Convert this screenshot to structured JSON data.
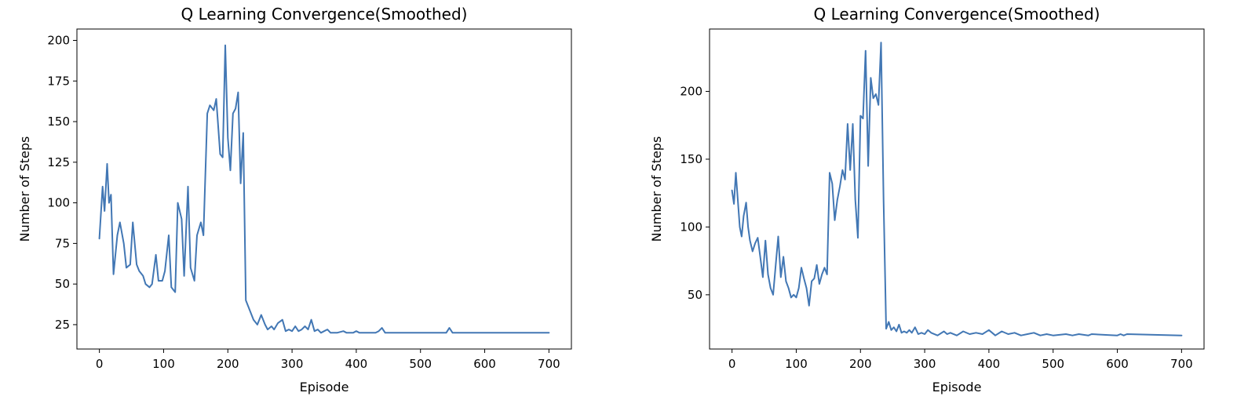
{
  "chart_data": [
    {
      "type": "line",
      "title": "Q Learning Convergence(Smoothed)",
      "xlabel": "Episode",
      "ylabel": "Number of Steps",
      "xlim": [
        -35,
        735
      ],
      "ylim": [
        10,
        207
      ],
      "xticks": [
        0,
        100,
        200,
        300,
        400,
        500,
        600,
        700
      ],
      "yticks": [
        25,
        50,
        75,
        100,
        125,
        150,
        175,
        200
      ],
      "grid": false,
      "legend": "none",
      "series": [
        {
          "color": "#4277b4",
          "x": [
            0,
            5,
            8,
            12,
            15,
            18,
            22,
            28,
            32,
            38,
            42,
            48,
            52,
            58,
            62,
            68,
            72,
            78,
            82,
            88,
            92,
            98,
            102,
            108,
            112,
            118,
            122,
            128,
            132,
            138,
            142,
            148,
            152,
            158,
            162,
            168,
            172,
            178,
            182,
            188,
            192,
            196,
            200,
            204,
            208,
            212,
            216,
            220,
            224,
            228,
            232,
            236,
            240,
            246,
            252,
            258,
            262,
            268,
            272,
            278,
            285,
            290,
            295,
            300,
            305,
            310,
            315,
            320,
            325,
            330,
            335,
            340,
            345,
            350,
            355,
            360,
            370,
            380,
            385,
            395,
            400,
            405,
            415,
            430,
            435,
            440,
            445,
            455,
            540,
            545,
            550,
            560,
            700
          ],
          "y": [
            78,
            110,
            95,
            124,
            100,
            105,
            56,
            80,
            88,
            75,
            60,
            62,
            88,
            62,
            58,
            55,
            50,
            48,
            50,
            68,
            52,
            52,
            58,
            80,
            48,
            45,
            100,
            90,
            55,
            110,
            60,
            52,
            80,
            88,
            80,
            155,
            160,
            157,
            164,
            130,
            128,
            197,
            140,
            120,
            155,
            158,
            168,
            112,
            143,
            40,
            36,
            32,
            28,
            25,
            31,
            25,
            22,
            24,
            22,
            26,
            28,
            21,
            22,
            21,
            24,
            21,
            22,
            24,
            22,
            28,
            21,
            22,
            20,
            21,
            22,
            20,
            20,
            21,
            20,
            20,
            21,
            20,
            20,
            20,
            21,
            23,
            20,
            20,
            20,
            23,
            20,
            20,
            20
          ]
        }
      ]
    },
    {
      "type": "line",
      "title": "Q Learning Convergence(Smoothed)",
      "xlabel": "Episode",
      "ylabel": "Number of Steps",
      "xlim": [
        -35,
        735
      ],
      "ylim": [
        10,
        246
      ],
      "xticks": [
        0,
        100,
        200,
        300,
        400,
        500,
        600,
        700
      ],
      "yticks": [
        50,
        100,
        150,
        200
      ],
      "grid": false,
      "legend": "none",
      "series": [
        {
          "color": "#4277b4",
          "x": [
            0,
            3,
            6,
            9,
            12,
            15,
            18,
            22,
            25,
            28,
            32,
            36,
            40,
            44,
            48,
            52,
            56,
            60,
            64,
            68,
            72,
            76,
            80,
            84,
            88,
            92,
            96,
            100,
            104,
            108,
            112,
            116,
            120,
            124,
            128,
            132,
            136,
            140,
            144,
            148,
            152,
            156,
            160,
            164,
            168,
            172,
            176,
            180,
            184,
            188,
            192,
            196,
            200,
            204,
            208,
            212,
            216,
            220,
            224,
            228,
            232,
            236,
            240,
            244,
            248,
            252,
            256,
            260,
            264,
            268,
            272,
            276,
            280,
            285,
            290,
            295,
            300,
            305,
            310,
            320,
            330,
            335,
            340,
            350,
            360,
            370,
            380,
            390,
            400,
            410,
            420,
            430,
            440,
            450,
            460,
            470,
            480,
            490,
            500,
            520,
            530,
            540,
            555,
            560,
            600,
            605,
            610,
            615,
            700
          ],
          "y": [
            127,
            117,
            140,
            120,
            100,
            93,
            108,
            118,
            100,
            90,
            82,
            88,
            92,
            78,
            63,
            90,
            65,
            55,
            50,
            72,
            93,
            63,
            78,
            60,
            55,
            48,
            50,
            48,
            55,
            70,
            62,
            55,
            42,
            60,
            62,
            72,
            58,
            65,
            70,
            65,
            140,
            132,
            105,
            120,
            130,
            142,
            135,
            176,
            142,
            176,
            120,
            92,
            182,
            180,
            230,
            145,
            210,
            195,
            198,
            190,
            236,
            120,
            25,
            30,
            24,
            26,
            23,
            28,
            22,
            23,
            22,
            24,
            22,
            26,
            21,
            22,
            21,
            24,
            22,
            20,
            23,
            21,
            22,
            20,
            23,
            21,
            22,
            21,
            24,
            20,
            23,
            21,
            22,
            20,
            21,
            22,
            20,
            21,
            20,
            21,
            20,
            21,
            20,
            21,
            20,
            21,
            20,
            21,
            20
          ]
        }
      ]
    }
  ]
}
